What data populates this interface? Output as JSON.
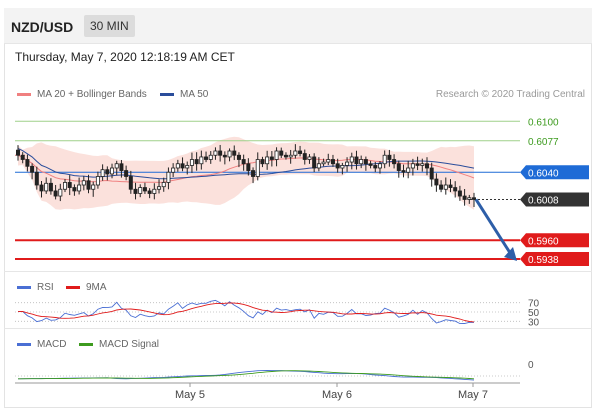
{
  "header": {
    "symbol": "NZD/USD",
    "timeframe": "30 MIN"
  },
  "datetime": "Thursday, May 7, 2020 12:18:19 AM CET",
  "legend": {
    "ma_bb": {
      "label": "MA 20 + Bollinger Bands",
      "color": "#f08080"
    },
    "ma50": {
      "label": "MA 50",
      "color": "#2a4d9b"
    },
    "copyright": "Research © 2020 Trading Central"
  },
  "levels": [
    {
      "value": 0.61,
      "label": "0.6100",
      "color": "#3d9b1f",
      "style": "green-line"
    },
    {
      "value": 0.6077,
      "label": "0.6077",
      "color": "#3d9b1f",
      "style": "green-line"
    },
    {
      "value": 0.604,
      "label": "0.6040",
      "color": "#1e6bd6",
      "style": "blue-box"
    },
    {
      "value": 0.6008,
      "label": "0.6008",
      "color": "#333333",
      "style": "dark-box"
    },
    {
      "value": 0.596,
      "label": "0.5960",
      "color": "#e01b1b",
      "style": "red-box"
    },
    {
      "value": 0.5938,
      "label": "0.5938",
      "color": "#e01b1b",
      "style": "red-box"
    }
  ],
  "rsi": {
    "label": "RSI",
    "ma_label": "9MA",
    "rsi_color": "#4a6fd4",
    "ma_color": "#e01b1b",
    "levels": [
      "70",
      "50",
      "30"
    ]
  },
  "macd": {
    "label": "MACD",
    "signal_label": "MACD Signal",
    "macd_color": "#4a6fd4",
    "signal_color": "#3d9b1f",
    "zero_label": "0"
  },
  "x_axis": {
    "ticks": [
      "May 5",
      "May 6",
      "May 7"
    ]
  },
  "chart_data": {
    "type": "candlestick",
    "yrange": [
      0.5925,
      0.6125
    ],
    "closes": [
      0.606,
      0.6055,
      0.6047,
      0.604,
      0.6025,
      0.6018,
      0.6027,
      0.6018,
      0.6012,
      0.602,
      0.6028,
      0.6022,
      0.6018,
      0.6025,
      0.603,
      0.602,
      0.6025,
      0.6035,
      0.6043,
      0.6038,
      0.6045,
      0.605,
      0.6042,
      0.6035,
      0.602,
      0.6015,
      0.6022,
      0.6018,
      0.6015,
      0.602,
      0.6023,
      0.6028,
      0.604,
      0.6045,
      0.605,
      0.6045,
      0.6048,
      0.6055,
      0.605,
      0.6058,
      0.6055,
      0.606,
      0.6065,
      0.606,
      0.6058,
      0.6065,
      0.606,
      0.6055,
      0.605,
      0.6042,
      0.6035,
      0.6055,
      0.605,
      0.6058,
      0.6055,
      0.6065,
      0.606,
      0.6058,
      0.606,
      0.6065,
      0.6062,
      0.6055,
      0.6058,
      0.6045,
      0.605,
      0.6052,
      0.6055,
      0.605,
      0.6045,
      0.6048,
      0.6052,
      0.6058,
      0.605,
      0.6055,
      0.605,
      0.6048,
      0.6045,
      0.605,
      0.606,
      0.6055,
      0.605,
      0.6042,
      0.604,
      0.6045,
      0.605,
      0.6048,
      0.605,
      0.6045,
      0.6032,
      0.6025,
      0.602,
      0.6025,
      0.6022,
      0.6018,
      0.6012,
      0.6008,
      0.601,
      0.6008
    ]
  }
}
